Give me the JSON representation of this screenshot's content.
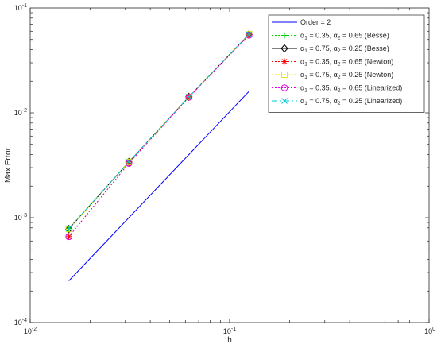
{
  "chart_data": {
    "type": "line",
    "xlabel": "h",
    "ylabel": "Max Error",
    "xscale": "log",
    "yscale": "log",
    "xlim": [
      0.01,
      1
    ],
    "ylim": [
      0.0001,
      0.1
    ],
    "x_ticks": [
      {
        "value": 0.01,
        "base": "10",
        "exp": "-2"
      },
      {
        "value": 0.1,
        "base": "10",
        "exp": "-1"
      },
      {
        "value": 1,
        "base": "10",
        "exp": "0"
      }
    ],
    "y_ticks": [
      {
        "value": 0.0001,
        "base": "10",
        "exp": "-4"
      },
      {
        "value": 0.001,
        "base": "10",
        "exp": "-3"
      },
      {
        "value": 0.01,
        "base": "10",
        "exp": "-2"
      },
      {
        "value": 0.1,
        "base": "10",
        "exp": "-1"
      }
    ],
    "grid": false,
    "legend_position": "top-right",
    "x": [
      0.015625,
      0.03125,
      0.0625,
      0.125
    ],
    "series": [
      {
        "legend": {
          "a1": "0.35",
          "a2": "0.65",
          "method": "(Besse)"
        },
        "color": "#00d000",
        "dash": "2,2",
        "marker": "plus",
        "values": [
          0.00079,
          0.0034,
          0.0142,
          0.056
        ]
      },
      {
        "legend": {
          "a1": "0.75",
          "a2": "0.25",
          "method": "(Besse)"
        },
        "color": "#000000",
        "dash": "",
        "marker": "diamond",
        "values": [
          0.00078,
          0.0034,
          0.0142,
          0.056
        ]
      },
      {
        "legend": {
          "a1": "0.35",
          "a2": "0.65",
          "method": "(Newton)"
        },
        "color": "#ff0000",
        "dash": "2,2",
        "marker": "asterisk",
        "values": [
          0.00066,
          0.0033,
          0.0141,
          0.055
        ]
      },
      {
        "legend": {
          "a1": "0.75",
          "a2": "0.25",
          "method": "(Newton)"
        },
        "color": "#e8e800",
        "dash": "2,2",
        "marker": "square",
        "values": [
          0.00078,
          0.0034,
          0.0142,
          0.056
        ]
      },
      {
        "legend": {
          "a1": "0.35",
          "a2": "0.65",
          "method": "(Linearized)"
        },
        "color": "#e000e0",
        "dash": "2,2",
        "marker": "circle",
        "values": [
          0.00066,
          0.0033,
          0.0141,
          0.055
        ]
      },
      {
        "legend": {
          "a1": "0.75",
          "a2": "0.25",
          "method": "(Linearized)"
        },
        "color": "#00c8d8",
        "dash": "7,3,2,3",
        "marker": "x",
        "values": [
          0.00079,
          0.0034,
          0.0142,
          0.056
        ]
      }
    ],
    "reference_line": {
      "name": "Order = 2",
      "color": "#0000ff",
      "x": [
        0.015625,
        0.125
      ],
      "values": [
        0.00025,
        0.016
      ]
    },
    "legend_labels": {
      "alpha": "α",
      "sub1": "1",
      "sub2": "2",
      "eq": " = ",
      "sep": ",  "
    }
  }
}
